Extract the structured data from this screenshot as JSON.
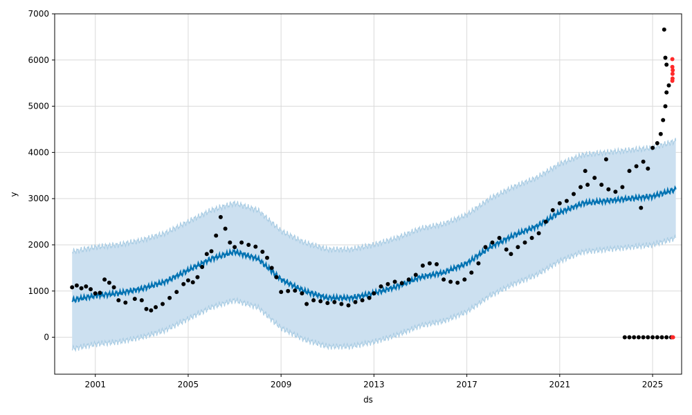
{
  "chart_data": {
    "type": "scatter",
    "title": "",
    "xlabel": "ds",
    "ylabel": "y",
    "xlim": [
      1999.25,
      2026.25
    ],
    "ylim": [
      -800,
      7000
    ],
    "x_ticks": [
      2001,
      2005,
      2009,
      2013,
      2017,
      2021,
      2025
    ],
    "x_tick_labels": [
      "2001",
      "2005",
      "2009",
      "2013",
      "2017",
      "2021",
      "2025"
    ],
    "y_ticks": [
      0,
      1000,
      2000,
      3000,
      4000,
      5000,
      6000,
      7000
    ],
    "y_tick_labels": [
      "0",
      "1000",
      "2000",
      "3000",
      "4000",
      "5000",
      "6000",
      "7000"
    ],
    "grid": true,
    "colors": {
      "observed": "#000000",
      "outlier": "#ff2a2a",
      "forecast": "#0072b2",
      "interval_fill": "#cce0f0",
      "interval_edge": "#a9cce3",
      "grid": "#d9d9d9"
    },
    "series": [
      {
        "role": "observed",
        "points": [
          [
            2000.0,
            1080
          ],
          [
            2000.2,
            1120
          ],
          [
            2000.4,
            1060
          ],
          [
            2000.6,
            1100
          ],
          [
            2000.8,
            1040
          ],
          [
            2001.0,
            950
          ],
          [
            2001.2,
            960
          ],
          [
            2001.4,
            1250
          ],
          [
            2001.6,
            1180
          ],
          [
            2001.8,
            1080
          ],
          [
            2002.0,
            800
          ],
          [
            2002.3,
            750
          ],
          [
            2002.7,
            830
          ],
          [
            2003.0,
            800
          ],
          [
            2003.2,
            610
          ],
          [
            2003.4,
            580
          ],
          [
            2003.6,
            650
          ],
          [
            2003.9,
            720
          ],
          [
            2004.2,
            850
          ],
          [
            2004.5,
            980
          ],
          [
            2004.8,
            1150
          ],
          [
            2005.0,
            1230
          ],
          [
            2005.2,
            1190
          ],
          [
            2005.4,
            1300
          ],
          [
            2005.6,
            1520
          ],
          [
            2005.8,
            1800
          ],
          [
            2006.0,
            1860
          ],
          [
            2006.2,
            2200
          ],
          [
            2006.4,
            2600
          ],
          [
            2006.6,
            2350
          ],
          [
            2006.8,
            2050
          ],
          [
            2007.0,
            1950
          ],
          [
            2007.3,
            2050
          ],
          [
            2007.6,
            2000
          ],
          [
            2007.9,
            1960
          ],
          [
            2008.2,
            1850
          ],
          [
            2008.4,
            1720
          ],
          [
            2008.6,
            1500
          ],
          [
            2008.8,
            1300
          ],
          [
            2009.0,
            980
          ],
          [
            2009.3,
            1000
          ],
          [
            2009.6,
            1010
          ],
          [
            2009.9,
            950
          ],
          [
            2010.1,
            720
          ],
          [
            2010.4,
            800
          ],
          [
            2010.7,
            780
          ],
          [
            2011.0,
            740
          ],
          [
            2011.3,
            760
          ],
          [
            2011.6,
            720
          ],
          [
            2011.9,
            690
          ],
          [
            2012.2,
            760
          ],
          [
            2012.5,
            800
          ],
          [
            2012.8,
            850
          ],
          [
            2013.0,
            950
          ],
          [
            2013.3,
            1100
          ],
          [
            2013.6,
            1150
          ],
          [
            2013.9,
            1200
          ],
          [
            2014.2,
            1170
          ],
          [
            2014.5,
            1250
          ],
          [
            2014.8,
            1350
          ],
          [
            2015.1,
            1550
          ],
          [
            2015.4,
            1600
          ],
          [
            2015.7,
            1580
          ],
          [
            2016.0,
            1250
          ],
          [
            2016.3,
            1200
          ],
          [
            2016.6,
            1180
          ],
          [
            2016.9,
            1250
          ],
          [
            2017.2,
            1400
          ],
          [
            2017.5,
            1600
          ],
          [
            2017.8,
            1950
          ],
          [
            2018.1,
            2050
          ],
          [
            2018.4,
            2150
          ],
          [
            2018.7,
            1900
          ],
          [
            2018.9,
            1800
          ],
          [
            2019.2,
            1950
          ],
          [
            2019.5,
            2050
          ],
          [
            2019.8,
            2150
          ],
          [
            2020.1,
            2250
          ],
          [
            2020.4,
            2500
          ],
          [
            2020.7,
            2750
          ],
          [
            2021.0,
            2900
          ],
          [
            2021.3,
            2950
          ],
          [
            2021.6,
            3100
          ],
          [
            2021.9,
            3250
          ],
          [
            2022.2,
            3300
          ],
          [
            2022.5,
            3450
          ],
          [
            2022.8,
            3300
          ],
          [
            2023.1,
            3200
          ],
          [
            2023.4,
            3150
          ],
          [
            2023.7,
            3250
          ],
          [
            2024.0,
            3600
          ],
          [
            2024.3,
            3700
          ],
          [
            2024.6,
            3800
          ],
          [
            2024.8,
            3650
          ],
          [
            2025.0,
            4100
          ],
          [
            2025.2,
            4200
          ],
          [
            2025.35,
            4400
          ],
          [
            2025.45,
            4700
          ],
          [
            2025.55,
            5000
          ],
          [
            2025.6,
            5300
          ],
          [
            2025.55,
            6050
          ],
          [
            2025.6,
            5900
          ],
          [
            2025.5,
            6660
          ],
          [
            2025.7,
            5450
          ],
          [
            2024.5,
            2800
          ],
          [
            2023.0,
            3850
          ],
          [
            2022.1,
            3600
          ]
        ]
      },
      {
        "role": "observed-zero",
        "points": [
          [
            2023.8,
            0
          ],
          [
            2024.0,
            0
          ],
          [
            2024.2,
            0
          ],
          [
            2024.4,
            0
          ],
          [
            2024.6,
            0
          ],
          [
            2024.8,
            0
          ],
          [
            2025.0,
            0
          ],
          [
            2025.2,
            0
          ],
          [
            2025.4,
            0
          ],
          [
            2025.6,
            0
          ],
          [
            2025.8,
            0
          ]
        ]
      },
      {
        "role": "outlier",
        "points": [
          [
            2025.85,
            6020
          ],
          [
            2025.85,
            5850
          ],
          [
            2025.87,
            5780
          ],
          [
            2025.86,
            5700
          ],
          [
            2025.86,
            5600
          ],
          [
            2025.85,
            5550
          ],
          [
            2025.85,
            0
          ],
          [
            2025.88,
            0
          ]
        ]
      },
      {
        "role": "forecast",
        "points": [
          [
            2000.0,
            800
          ],
          [
            2001.0,
            900
          ],
          [
            2002.0,
            950
          ],
          [
            2003.0,
            1050
          ],
          [
            2004.0,
            1200
          ],
          [
            2005.0,
            1450
          ],
          [
            2006.0,
            1700
          ],
          [
            2007.0,
            1850
          ],
          [
            2008.0,
            1700
          ],
          [
            2009.0,
            1250
          ],
          [
            2010.0,
            1000
          ],
          [
            2011.0,
            850
          ],
          [
            2012.0,
            850
          ],
          [
            2013.0,
            950
          ],
          [
            2014.0,
            1100
          ],
          [
            2015.0,
            1300
          ],
          [
            2016.0,
            1400
          ],
          [
            2017.0,
            1600
          ],
          [
            2018.0,
            1950
          ],
          [
            2019.0,
            2200
          ],
          [
            2020.0,
            2400
          ],
          [
            2021.0,
            2700
          ],
          [
            2022.0,
            2900
          ],
          [
            2023.0,
            2950
          ],
          [
            2024.0,
            3000
          ],
          [
            2025.0,
            3050
          ],
          [
            2026.0,
            3200
          ]
        ]
      },
      {
        "role": "interval-upper",
        "points": [
          [
            2000.0,
            1850
          ],
          [
            2001.0,
            1950
          ],
          [
            2002.0,
            2000
          ],
          [
            2003.0,
            2100
          ],
          [
            2004.0,
            2250
          ],
          [
            2005.0,
            2500
          ],
          [
            2006.0,
            2750
          ],
          [
            2007.0,
            2900
          ],
          [
            2008.0,
            2750
          ],
          [
            2009.0,
            2300
          ],
          [
            2010.0,
            2050
          ],
          [
            2011.0,
            1900
          ],
          [
            2012.0,
            1900
          ],
          [
            2013.0,
            2000
          ],
          [
            2014.0,
            2150
          ],
          [
            2015.0,
            2350
          ],
          [
            2016.0,
            2450
          ],
          [
            2017.0,
            2650
          ],
          [
            2018.0,
            3000
          ],
          [
            2019.0,
            3250
          ],
          [
            2020.0,
            3450
          ],
          [
            2021.0,
            3750
          ],
          [
            2022.0,
            3950
          ],
          [
            2023.0,
            4000
          ],
          [
            2024.0,
            4050
          ],
          [
            2025.0,
            4100
          ],
          [
            2026.0,
            4250
          ]
        ]
      },
      {
        "role": "interval-lower",
        "points": [
          [
            2000.0,
            -250
          ],
          [
            2001.0,
            -150
          ],
          [
            2002.0,
            -100
          ],
          [
            2003.0,
            0
          ],
          [
            2004.0,
            150
          ],
          [
            2005.0,
            400
          ],
          [
            2006.0,
            650
          ],
          [
            2007.0,
            800
          ],
          [
            2008.0,
            650
          ],
          [
            2009.0,
            200
          ],
          [
            2010.0,
            -50
          ],
          [
            2011.0,
            -200
          ],
          [
            2012.0,
            -200
          ],
          [
            2013.0,
            -100
          ],
          [
            2014.0,
            50
          ],
          [
            2015.0,
            250
          ],
          [
            2016.0,
            350
          ],
          [
            2017.0,
            550
          ],
          [
            2018.0,
            900
          ],
          [
            2019.0,
            1150
          ],
          [
            2020.0,
            1350
          ],
          [
            2021.0,
            1650
          ],
          [
            2022.0,
            1850
          ],
          [
            2023.0,
            1900
          ],
          [
            2024.0,
            1950
          ],
          [
            2025.0,
            2000
          ],
          [
            2026.0,
            2150
          ]
        ]
      }
    ]
  }
}
